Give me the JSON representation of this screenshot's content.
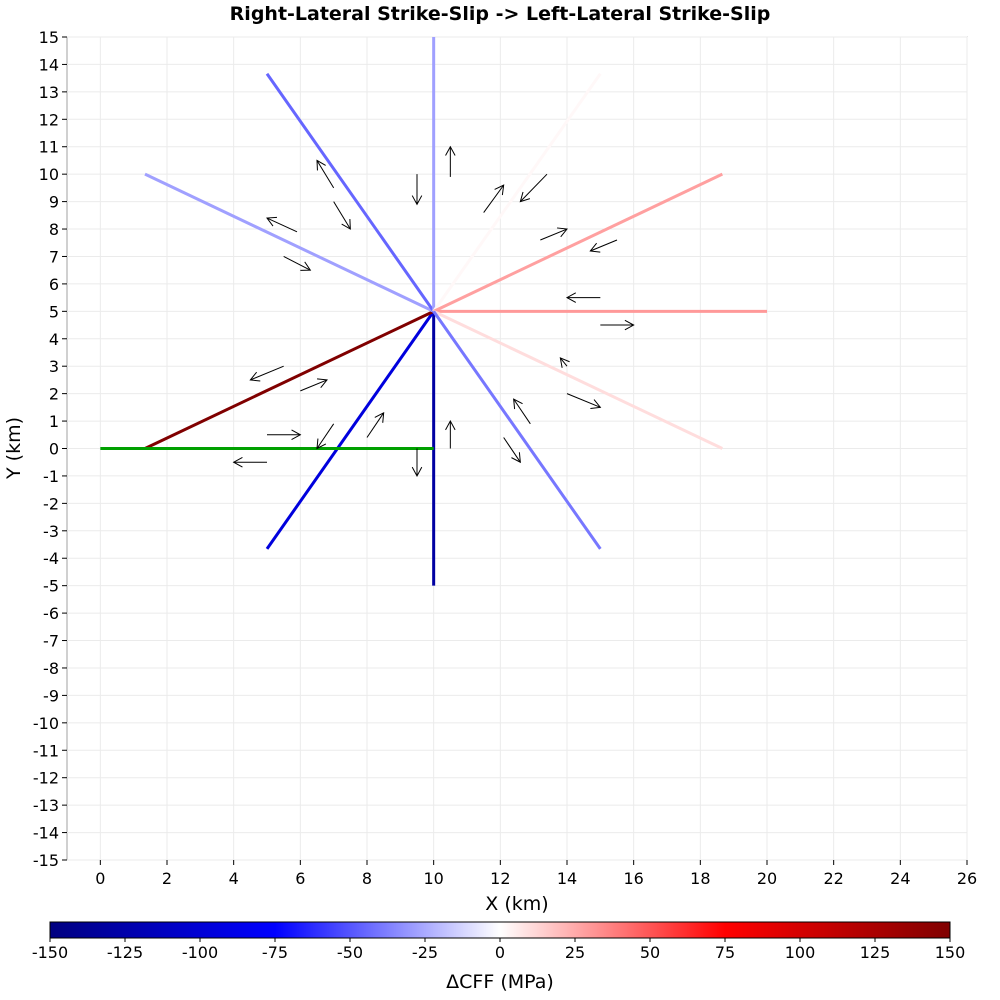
{
  "chart_data": {
    "type": "line",
    "title": "Right-Lateral Strike-Slip -> Left-Lateral Strike-Slip",
    "xlabel": "X (km)",
    "ylabel": "Y (km)",
    "xlim": [
      -1,
      26
    ],
    "ylim": [
      -15,
      15
    ],
    "xticks": [
      0,
      2,
      4,
      6,
      8,
      10,
      12,
      14,
      16,
      18,
      20,
      22,
      24,
      26
    ],
    "yticks": [
      -15,
      -14,
      -13,
      -12,
      -11,
      -10,
      -9,
      -8,
      -7,
      -6,
      -5,
      -4,
      -3,
      -2,
      -1,
      0,
      1,
      2,
      3,
      4,
      5,
      6,
      7,
      8,
      9,
      10,
      11,
      12,
      13,
      14,
      15
    ],
    "grid": true,
    "source_fault": {
      "color": "#00a000",
      "x": [
        0,
        10
      ],
      "y": [
        0,
        0
      ]
    },
    "receiver_faults": [
      {
        "x": [
          10,
          10
        ],
        "y": [
          5,
          -5
        ],
        "dcff": -130
      },
      {
        "x": [
          10,
          5
        ],
        "y": [
          5,
          -3.66
        ],
        "dcff": -95
      },
      {
        "x": [
          10,
          1.34
        ],
        "y": [
          5,
          0
        ],
        "dcff": 150
      },
      {
        "x": [
          10,
          1.34
        ],
        "y": [
          5,
          10
        ],
        "dcff": -28
      },
      {
        "x": [
          10,
          5
        ],
        "y": [
          5,
          13.66
        ],
        "dcff": -45
      },
      {
        "x": [
          10,
          10
        ],
        "y": [
          5,
          15
        ],
        "dcff": -28
      },
      {
        "x": [
          10,
          15
        ],
        "y": [
          5,
          13.66
        ],
        "dcff": 2
      },
      {
        "x": [
          10,
          18.66
        ],
        "y": [
          5,
          10
        ],
        "dcff": 28
      },
      {
        "x": [
          10,
          20
        ],
        "y": [
          5,
          5
        ],
        "dcff": 30
      },
      {
        "x": [
          10,
          18.66
        ],
        "y": [
          5,
          0
        ],
        "dcff": 10
      },
      {
        "x": [
          10,
          15
        ],
        "y": [
          5,
          -3.66
        ],
        "dcff": -40
      }
    ],
    "slip_arrows": [
      [
        9.5,
        10,
        9.5,
        8.9
      ],
      [
        10.5,
        9.9,
        10.5,
        11
      ],
      [
        7.0,
        9.5,
        6.5,
        10.5
      ],
      [
        7.0,
        9.0,
        7.5,
        8.0
      ],
      [
        5.9,
        7.9,
        5.0,
        8.4
      ],
      [
        5.5,
        7.0,
        6.3,
        6.5
      ],
      [
        11.5,
        8.6,
        12.1,
        9.6
      ],
      [
        13.4,
        10.0,
        12.6,
        9.0
      ],
      [
        13.2,
        7.6,
        14.0,
        8.0
      ],
      [
        15.5,
        7.6,
        14.7,
        7.2
      ],
      [
        15.0,
        5.5,
        14.0,
        5.5
      ],
      [
        15.0,
        4.5,
        16.0,
        4.5
      ],
      [
        14.0,
        3.0,
        13.8,
        3.3
      ],
      [
        14.0,
        2.0,
        15.0,
        1.5
      ],
      [
        12.9,
        0.9,
        12.4,
        1.8
      ],
      [
        12.1,
        0.4,
        12.6,
        -0.5
      ],
      [
        10.5,
        0.0,
        10.5,
        1.0
      ],
      [
        9.5,
        0.0,
        9.5,
        -1.0
      ],
      [
        7.0,
        0.9,
        6.5,
        0.0
      ],
      [
        8.0,
        0.4,
        8.5,
        1.3
      ],
      [
        5.0,
        0.5,
        6.0,
        0.5
      ],
      [
        5.0,
        -0.5,
        4.0,
        -0.5
      ],
      [
        5.5,
        3.0,
        4.5,
        2.5
      ],
      [
        6.0,
        2.1,
        6.8,
        2.5
      ]
    ],
    "colorbar": {
      "label": "ΔCFF (MPa)",
      "min": -150,
      "max": 150,
      "ticks": [
        -150,
        -125,
        -100,
        -75,
        -50,
        -25,
        0,
        25,
        50,
        75,
        100,
        125,
        150
      ],
      "stops": [
        [
          -150,
          "#000080"
        ],
        [
          -75,
          "#0000ff"
        ],
        [
          0,
          "#ffffff"
        ],
        [
          75,
          "#ff0000"
        ],
        [
          150,
          "#800000"
        ]
      ]
    }
  }
}
